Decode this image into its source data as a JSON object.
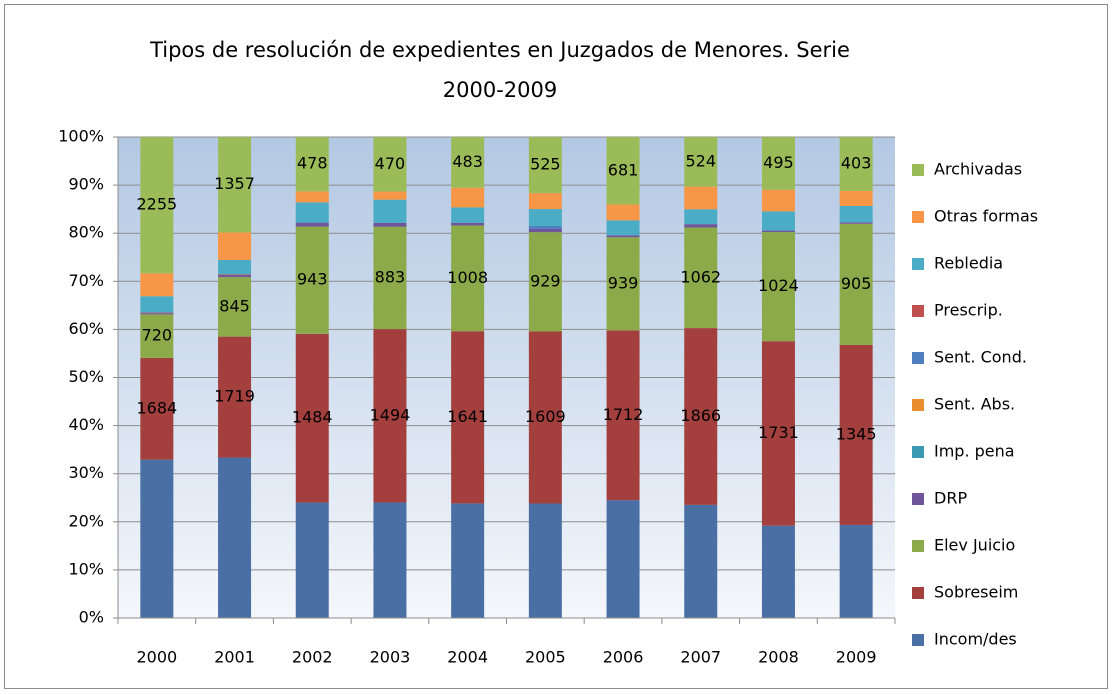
{
  "chart_data": {
    "type": "bar",
    "stacking": "percent",
    "title": "Tipos de resolución de expedientes en Juzgados de Menores. Serie 2000-2009",
    "categories": [
      "2000",
      "2001",
      "2002",
      "2003",
      "2004",
      "2005",
      "2006",
      "2007",
      "2008",
      "2009"
    ],
    "ylim": [
      0,
      100
    ],
    "yticks": [
      {
        "value": 0,
        "label": "0%"
      },
      {
        "value": 10,
        "label": "10%"
      },
      {
        "value": 20,
        "label": "20%"
      },
      {
        "value": 30,
        "label": "30%"
      },
      {
        "value": 40,
        "label": "40%"
      },
      {
        "value": 50,
        "label": "50%"
      },
      {
        "value": 60,
        "label": "60%"
      },
      {
        "value": 70,
        "label": "70%"
      },
      {
        "value": 80,
        "label": "80%"
      },
      {
        "value": 90,
        "label": "90%"
      },
      {
        "value": 100,
        "label": "100%"
      }
    ],
    "grid": true,
    "legend": "right",
    "series": [
      {
        "name": "Incom/des",
        "color": "#4A6FA5",
        "values": [
          2620,
          2280,
          1015,
          996,
          1092,
          1071,
          1188,
          1194,
          866,
          695
        ]
      },
      {
        "name": "Sobreseim",
        "color": "#A33F3C",
        "labels": true,
        "values": [
          1684,
          1719,
          1484,
          1494,
          1641,
          1609,
          1712,
          1866,
          1731,
          1345
        ]
      },
      {
        "name": "Elev Juicio",
        "color": "#8DAA4A",
        "labels": true,
        "values": [
          720,
          845,
          943,
          883,
          1008,
          929,
          939,
          1062,
          1024,
          905
        ]
      },
      {
        "name": "DRP",
        "color": "#6F559A",
        "values": [
          20,
          30,
          35,
          33,
          25,
          30,
          20,
          35,
          14,
          11
        ]
      },
      {
        "name": "Imp. pena",
        "color": "#3B9AB2",
        "values": [
          0,
          0,
          0,
          0,
          0,
          0,
          0,
          0,
          0,
          0
        ]
      },
      {
        "name": "Sent. Abs.",
        "color": "#E98D2E",
        "values": [
          0,
          0,
          0,
          0,
          0,
          0,
          0,
          0,
          0,
          0
        ]
      },
      {
        "name": "Sent. Cond.",
        "color": "#4F7FC0",
        "values": [
          0,
          0,
          0,
          0,
          0,
          28,
          0,
          0,
          0,
          0
        ]
      },
      {
        "name": "Prescrip.",
        "color": "#C0504D",
        "values": [
          10,
          10,
          0,
          0,
          0,
          0,
          0,
          0,
          0,
          0
        ]
      },
      {
        "name": "Rebledia",
        "color": "#4BACC6",
        "values": [
          270,
          205,
          178,
          200,
          147,
          158,
          150,
          157,
          180,
          122
        ]
      },
      {
        "name": "Otras formas",
        "color": "#F79646",
        "values": [
          380,
          390,
          97,
          70,
          188,
          149,
          160,
          239,
          203,
          112
        ]
      },
      {
        "name": "Archivadas",
        "color": "#9BBB59",
        "labels": true,
        "values": [
          2255,
          1357,
          478,
          470,
          483,
          525,
          681,
          524,
          495,
          403
        ]
      }
    ]
  }
}
